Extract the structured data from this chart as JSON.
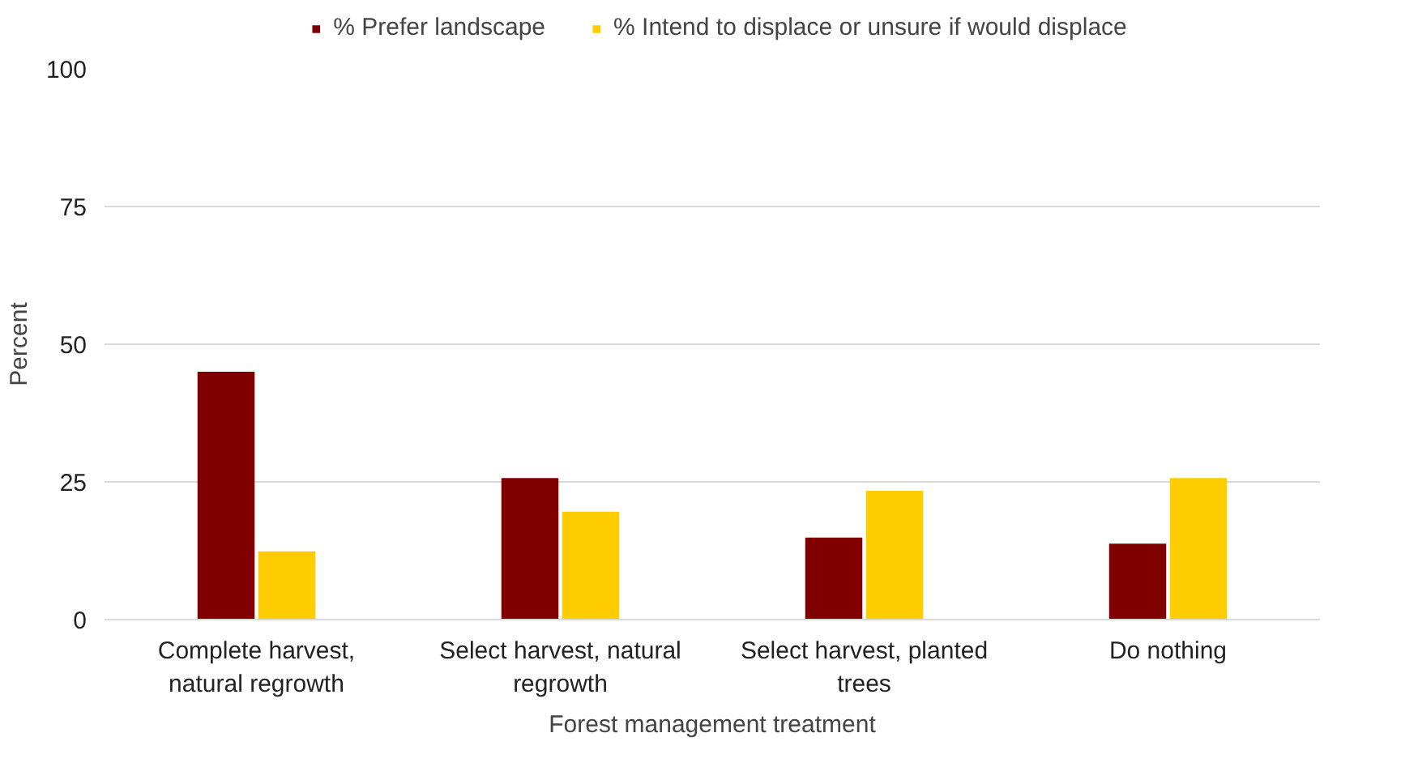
{
  "chart_data": {
    "type": "bar",
    "xlabel": "Forest management treatment",
    "ylabel": "Percent",
    "categories": [
      "Complete harvest, natural regrowth",
      "Select harvest, natural regrowth",
      "Select harvest, planted trees",
      "Do nothing"
    ],
    "series": [
      {
        "name": "% Prefer landscape",
        "color": "#800000",
        "values": [
          45,
          25.7,
          14.9,
          13.8
        ]
      },
      {
        "name": "% Intend to displace or unsure if would displace",
        "color": "#ffcc00",
        "values": [
          12.4,
          19.6,
          23.4,
          25.7
        ]
      }
    ],
    "ylim": [
      0,
      100
    ],
    "yticks": [
      0,
      25,
      50,
      75,
      100
    ],
    "grid": "y",
    "legend": "top"
  }
}
